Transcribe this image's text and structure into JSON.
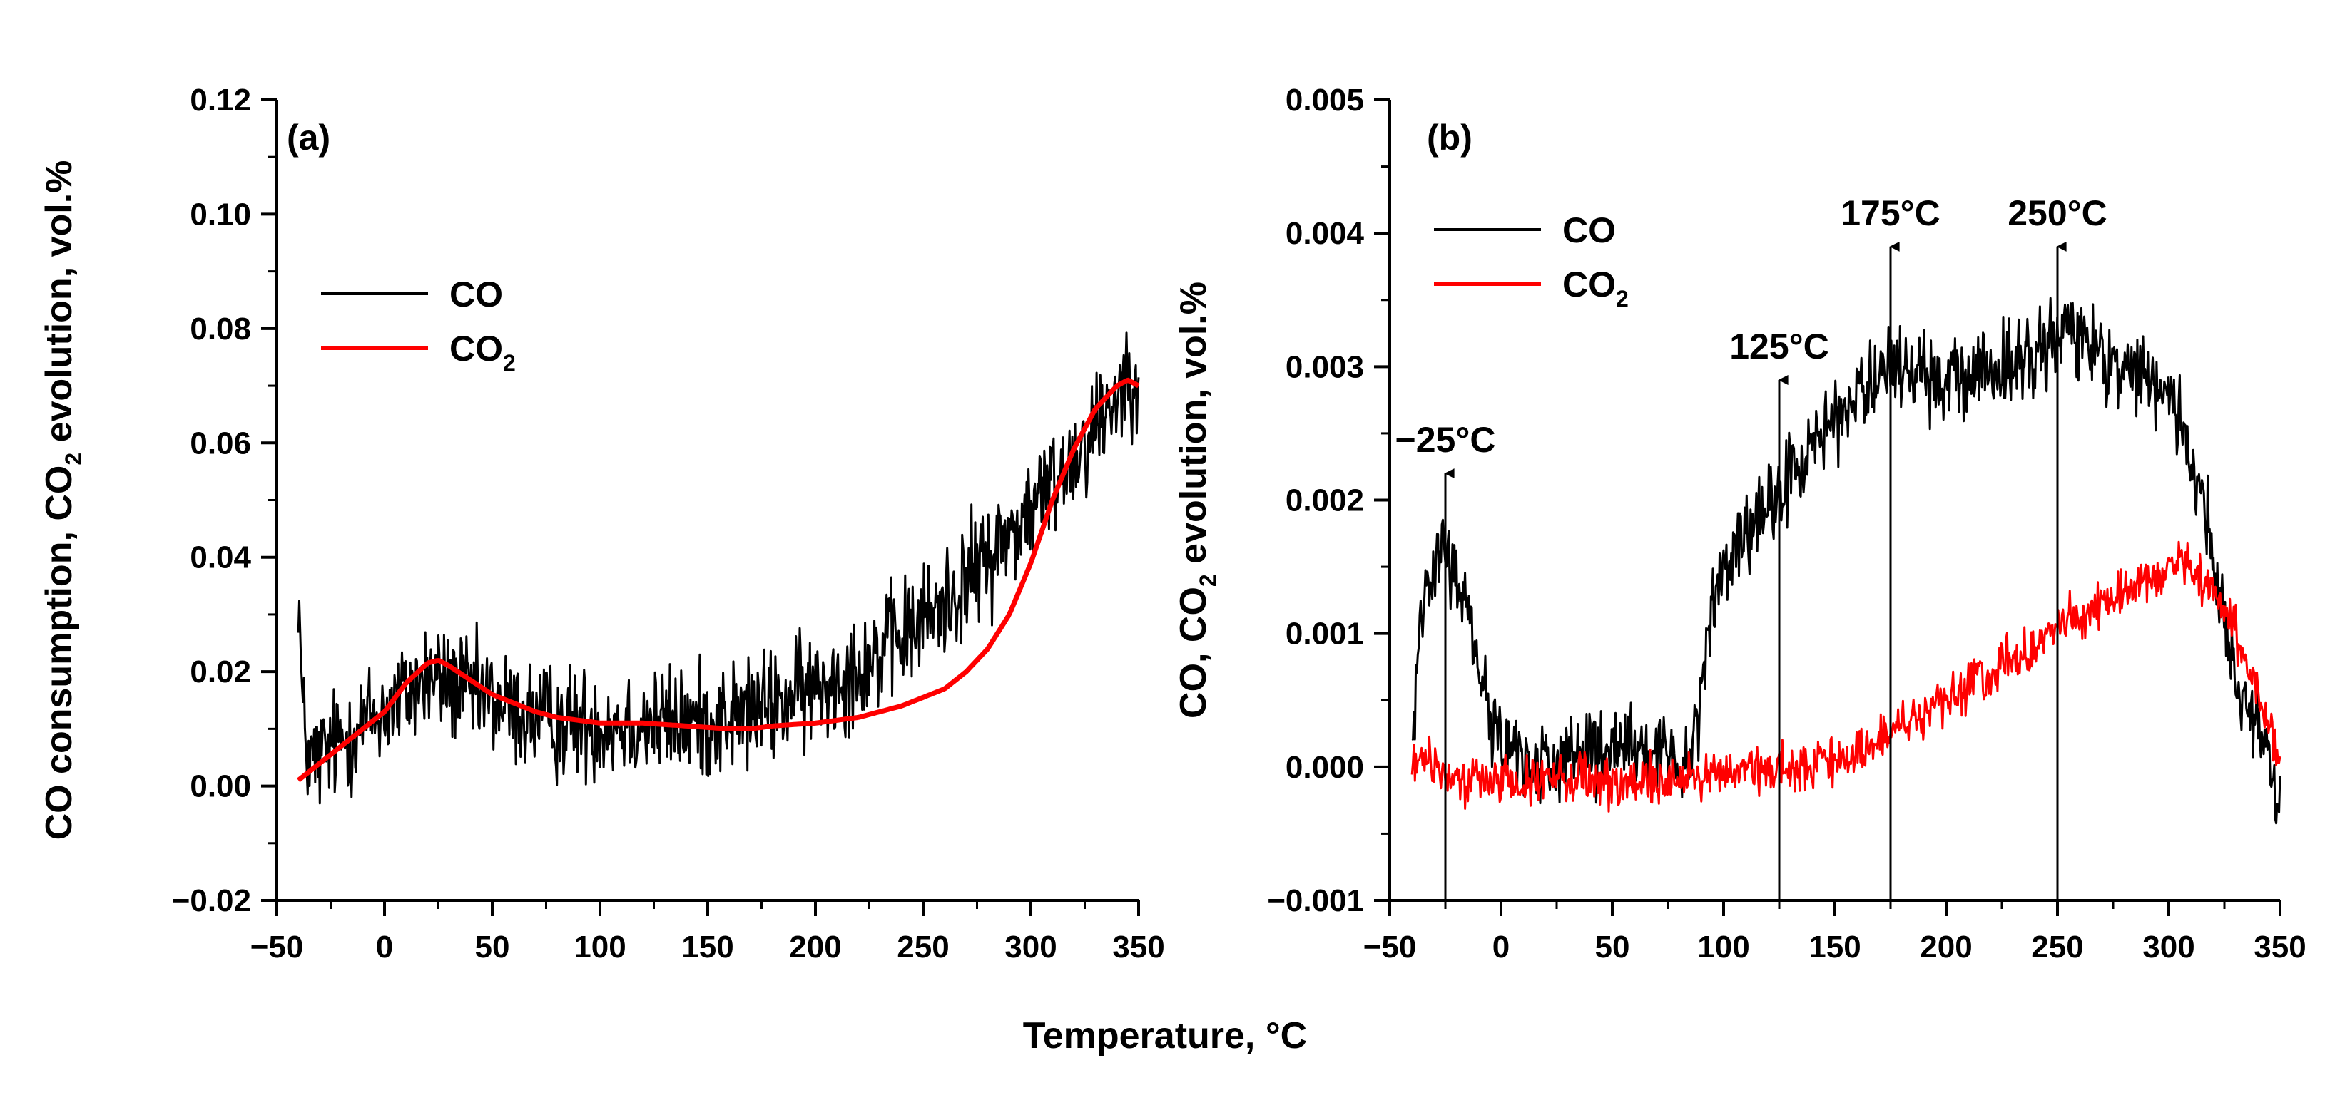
{
  "figure": {
    "xlabel": "Temperature, °C"
  },
  "chart_data": [
    {
      "type": "line",
      "panel_label": "(a)",
      "ylabel": {
        "main": "CO consumption, CO",
        "sub": "2",
        "tail": " evolution, vol.%"
      },
      "xlim": [
        -50,
        350
      ],
      "ylim": [
        -0.02,
        0.12
      ],
      "x_ticks": [
        -50,
        0,
        50,
        100,
        150,
        200,
        250,
        300,
        350
      ],
      "x_tick_labels": [
        "−50",
        "0",
        "50",
        "100",
        "150",
        "200",
        "250",
        "300",
        "350"
      ],
      "y_ticks": [
        -0.02,
        0.0,
        0.02,
        0.04,
        0.06,
        0.08,
        0.1,
        0.12
      ],
      "y_tick_labels": [
        "−0.02",
        "0.00",
        "0.02",
        "0.04",
        "0.06",
        "0.08",
        "0.10",
        "0.12"
      ],
      "legend": [
        {
          "name": "CO",
          "sub": "",
          "color": "#000000"
        },
        {
          "name": "CO",
          "sub": "2",
          "color": "#ff0000"
        }
      ],
      "legend_position": "upper-left",
      "series": [
        {
          "name": "CO",
          "color": "#000000",
          "noisy": true,
          "noise_amplitude": 0.0075,
          "points": [
            [
              -40,
              0.036
            ],
            [
              -38,
              0.012
            ],
            [
              -35,
              0.004
            ],
            [
              -30,
              0.005
            ],
            [
              -20,
              0.008
            ],
            [
              -10,
              0.011
            ],
            [
              0,
              0.013
            ],
            [
              10,
              0.016
            ],
            [
              20,
              0.019
            ],
            [
              30,
              0.018
            ],
            [
              40,
              0.016
            ],
            [
              50,
              0.015
            ],
            [
              60,
              0.013
            ],
            [
              70,
              0.012
            ],
            [
              80,
              0.011
            ],
            [
              100,
              0.011
            ],
            [
              120,
              0.011
            ],
            [
              140,
              0.011
            ],
            [
              160,
              0.012
            ],
            [
              180,
              0.014
            ],
            [
              200,
              0.017
            ],
            [
              220,
              0.021
            ],
            [
              240,
              0.026
            ],
            [
              260,
              0.032
            ],
            [
              280,
              0.04
            ],
            [
              300,
              0.048
            ],
            [
              320,
              0.058
            ],
            [
              335,
              0.066
            ],
            [
              345,
              0.072
            ],
            [
              350,
              0.074
            ]
          ]
        },
        {
          "name": "CO2",
          "color": "#ff0000",
          "noisy": false,
          "points": [
            [
              -40,
              0.001
            ],
            [
              -30,
              0.004
            ],
            [
              -20,
              0.007
            ],
            [
              -10,
              0.01
            ],
            [
              0,
              0.013
            ],
            [
              10,
              0.018
            ],
            [
              20,
              0.0215
            ],
            [
              25,
              0.022
            ],
            [
              30,
              0.021
            ],
            [
              40,
              0.0185
            ],
            [
              50,
              0.016
            ],
            [
              60,
              0.0145
            ],
            [
              70,
              0.013
            ],
            [
              80,
              0.012
            ],
            [
              100,
              0.011
            ],
            [
              120,
              0.011
            ],
            [
              140,
              0.0105
            ],
            [
              160,
              0.01
            ],
            [
              170,
              0.01
            ],
            [
              180,
              0.0105
            ],
            [
              200,
              0.011
            ],
            [
              220,
              0.012
            ],
            [
              240,
              0.014
            ],
            [
              260,
              0.017
            ],
            [
              270,
              0.02
            ],
            [
              280,
              0.024
            ],
            [
              290,
              0.03
            ],
            [
              300,
              0.039
            ],
            [
              310,
              0.05
            ],
            [
              320,
              0.059
            ],
            [
              330,
              0.066
            ],
            [
              340,
              0.07
            ],
            [
              345,
              0.071
            ],
            [
              350,
              0.07
            ]
          ]
        }
      ],
      "annotations": []
    },
    {
      "type": "line",
      "panel_label": "(b)",
      "ylabel": {
        "main": "CO, CO",
        "sub": "2",
        "tail": " evolution, vol.%"
      },
      "xlim": [
        -50,
        350
      ],
      "ylim": [
        -0.001,
        0.005
      ],
      "x_ticks": [
        -50,
        0,
        50,
        100,
        150,
        200,
        250,
        300,
        350
      ],
      "x_tick_labels": [
        "−50",
        "0",
        "50",
        "100",
        "150",
        "200",
        "250",
        "300",
        "350"
      ],
      "y_ticks": [
        -0.001,
        0.0,
        0.001,
        0.002,
        0.003,
        0.004,
        0.005
      ],
      "y_tick_labels": [
        "−0.001",
        "0.000",
        "0.001",
        "0.002",
        "0.003",
        "0.004",
        "0.005"
      ],
      "legend": [
        {
          "name": "CO",
          "sub": "",
          "color": "#000000"
        },
        {
          "name": "CO",
          "sub": "2",
          "color": "#ff0000"
        }
      ],
      "legend_position": "upper-left",
      "series": [
        {
          "name": "CO",
          "color": "#000000",
          "noisy": true,
          "noise_amplitude": 0.00023,
          "points": [
            [
              -40,
              0.0001
            ],
            [
              -37,
              0.001
            ],
            [
              -33,
              0.0015
            ],
            [
              -28,
              0.0016
            ],
            [
              -25,
              0.00155
            ],
            [
              -20,
              0.0014
            ],
            [
              -15,
              0.0012
            ],
            [
              -10,
              0.0008
            ],
            [
              -5,
              0.0004
            ],
            [
              0,
              0.0002
            ],
            [
              5,
              0.0001
            ],
            [
              10,
              5e-05
            ],
            [
              20,
              3e-05
            ],
            [
              30,
              5e-05
            ],
            [
              40,
              0.0001
            ],
            [
              50,
              0.0001
            ],
            [
              60,
              0.0001
            ],
            [
              70,
              8e-05
            ],
            [
              80,
              5e-05
            ],
            [
              85,
              0.0001
            ],
            [
              90,
              0.0006
            ],
            [
              95,
              0.0012
            ],
            [
              100,
              0.0015
            ],
            [
              110,
              0.0017
            ],
            [
              120,
              0.0019
            ],
            [
              125,
              0.002
            ],
            [
              130,
              0.0022
            ],
            [
              140,
              0.0024
            ],
            [
              150,
              0.0026
            ],
            [
              160,
              0.0028
            ],
            [
              170,
              0.0029
            ],
            [
              175,
              0.003
            ],
            [
              180,
              0.003
            ],
            [
              190,
              0.0029
            ],
            [
              200,
              0.0029
            ],
            [
              210,
              0.0029
            ],
            [
              220,
              0.003
            ],
            [
              230,
              0.003
            ],
            [
              240,
              0.0031
            ],
            [
              250,
              0.0032
            ],
            [
              255,
              0.0033
            ],
            [
              260,
              0.0032
            ],
            [
              270,
              0.0031
            ],
            [
              280,
              0.003
            ],
            [
              290,
              0.0029
            ],
            [
              300,
              0.0028
            ],
            [
              305,
              0.0026
            ],
            [
              310,
              0.0023
            ],
            [
              315,
              0.002
            ],
            [
              320,
              0.0016
            ],
            [
              325,
              0.0011
            ],
            [
              330,
              0.0007
            ],
            [
              335,
              0.0005
            ],
            [
              340,
              0.0003
            ],
            [
              345,
              0.0001
            ],
            [
              348,
              -0.0002
            ],
            [
              350,
              -0.0003
            ]
          ]
        },
        {
          "name": "CO2",
          "color": "#ff0000",
          "noisy": true,
          "noise_amplitude": 0.00013,
          "points": [
            [
              -40,
              5e-05
            ],
            [
              -30,
              0.0
            ],
            [
              -20,
              -0.0001
            ],
            [
              -10,
              -0.0001
            ],
            [
              0,
              -0.0001
            ],
            [
              20,
              -0.0001
            ],
            [
              40,
              -0.0001
            ],
            [
              60,
              -0.00012
            ],
            [
              80,
              -0.0001
            ],
            [
              100,
              -5e-05
            ],
            [
              120,
              0.0
            ],
            [
              140,
              0.0
            ],
            [
              150,
              5e-05
            ],
            [
              160,
              0.0001
            ],
            [
              170,
              0.0002
            ],
            [
              180,
              0.0003
            ],
            [
              190,
              0.0004
            ],
            [
              200,
              0.0005
            ],
            [
              210,
              0.0006
            ],
            [
              220,
              0.0007
            ],
            [
              230,
              0.0008
            ],
            [
              240,
              0.0009
            ],
            [
              250,
              0.00105
            ],
            [
              260,
              0.0011
            ],
            [
              270,
              0.0012
            ],
            [
              280,
              0.0013
            ],
            [
              290,
              0.0014
            ],
            [
              300,
              0.0015
            ],
            [
              305,
              0.00155
            ],
            [
              310,
              0.0015
            ],
            [
              315,
              0.0014
            ],
            [
              320,
              0.0013
            ],
            [
              325,
              0.0012
            ],
            [
              330,
              0.001
            ],
            [
              335,
              0.0008
            ],
            [
              340,
              0.0006
            ],
            [
              345,
              0.0003
            ],
            [
              348,
              0.0001
            ],
            [
              350,
              -0.0001
            ]
          ]
        }
      ],
      "annotations": [
        {
          "label": "−25°C",
          "x": -25,
          "arrow_tip": 0.0022
        },
        {
          "label": "125°C",
          "x": 125,
          "arrow_tip": 0.0029
        },
        {
          "label": "175°C",
          "x": 175,
          "arrow_tip": 0.0039
        },
        {
          "label": "250°C",
          "x": 250,
          "arrow_tip": 0.0039
        }
      ]
    }
  ]
}
